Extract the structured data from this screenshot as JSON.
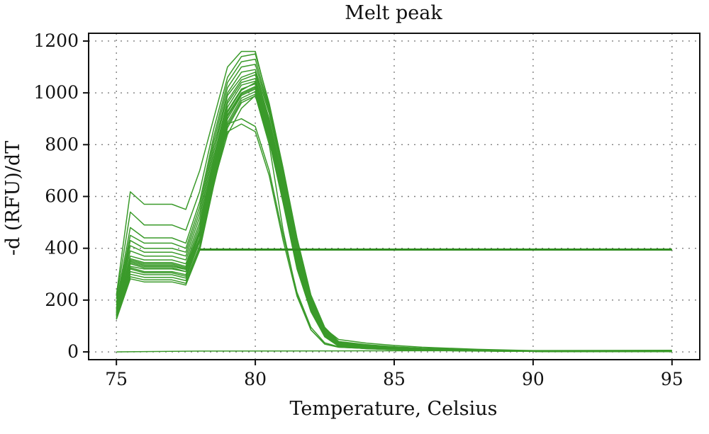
{
  "chart_data": {
    "type": "line",
    "title": "Melt peak",
    "xlabel": "Temperature, Celsius",
    "ylabel": "-d (RFU)/dT",
    "xlim": [
      74,
      96
    ],
    "ylim": [
      -30,
      1230
    ],
    "x_ticks": [
      75,
      80,
      85,
      90,
      95
    ],
    "y_ticks": [
      0,
      200,
      400,
      600,
      800,
      1000,
      1200
    ],
    "grid": true,
    "legend": "none",
    "colors": {
      "curve": "#3a9a2a",
      "threshold": "#2f8c1f",
      "axis": "#111111"
    },
    "threshold": {
      "y": 395,
      "x": [
        78,
        95
      ]
    },
    "baseline": {
      "x": [
        75,
        78,
        83,
        95
      ],
      "y": [
        0,
        3,
        4,
        6
      ]
    },
    "melt_curves": {
      "x": [
        75,
        75.5,
        76,
        77,
        77.5,
        78,
        78.5,
        79,
        79.5,
        80,
        80.5,
        81,
        81.5,
        82,
        82.5,
        83,
        84,
        85,
        86,
        88,
        90,
        95
      ],
      "series": [
        {
          "values": [
            220,
            618,
            570,
            570,
            550,
            700,
            900,
            1100,
            1160,
            1160,
            950,
            690,
            420,
            210,
            90,
            48,
            34,
            25,
            18,
            10,
            5,
            2
          ]
        },
        {
          "values": [
            205,
            540,
            490,
            490,
            470,
            620,
            860,
            1060,
            1140,
            1150,
            960,
            710,
            440,
            220,
            95,
            40,
            28,
            20,
            14,
            8,
            4,
            2
          ]
        },
        {
          "values": [
            190,
            480,
            440,
            440,
            420,
            580,
            830,
            1040,
            1120,
            1130,
            940,
            700,
            430,
            210,
            90,
            38,
            26,
            18,
            12,
            7,
            4,
            2
          ]
        },
        {
          "values": [
            180,
            450,
            420,
            420,
            400,
            560,
            810,
            1020,
            1100,
            1110,
            930,
            690,
            420,
            205,
            85,
            36,
            24,
            17,
            11,
            6,
            3,
            2
          ]
        },
        {
          "values": [
            170,
            430,
            400,
            400,
            385,
            540,
            790,
            1000,
            1080,
            1090,
            920,
            680,
            410,
            200,
            80,
            34,
            22,
            16,
            10,
            6,
            3,
            1
          ]
        },
        {
          "values": [
            165,
            410,
            385,
            385,
            370,
            520,
            770,
            990,
            1060,
            1080,
            900,
            665,
            400,
            195,
            78,
            32,
            20,
            15,
            10,
            6,
            3,
            1
          ]
        },
        {
          "values": [
            160,
            390,
            370,
            370,
            355,
            500,
            750,
            970,
            1050,
            1070,
            890,
            650,
            390,
            190,
            75,
            30,
            18,
            14,
            9,
            5,
            3,
            1
          ]
        },
        {
          "values": [
            155,
            370,
            355,
            355,
            340,
            485,
            735,
            960,
            1040,
            1055,
            880,
            640,
            380,
            185,
            72,
            28,
            17,
            13,
            9,
            5,
            3,
            1
          ]
        },
        {
          "values": [
            150,
            355,
            340,
            340,
            325,
            470,
            720,
            945,
            1030,
            1045,
            870,
            630,
            370,
            180,
            70,
            27,
            16,
            12,
            8,
            5,
            2,
            1
          ]
        },
        {
          "values": [
            145,
            340,
            325,
            325,
            310,
            455,
            705,
            930,
            1015,
            1035,
            860,
            620,
            360,
            175,
            68,
            26,
            15,
            11,
            8,
            5,
            2,
            1
          ]
        },
        {
          "values": [
            140,
            325,
            310,
            310,
            298,
            440,
            690,
            915,
            1000,
            1025,
            850,
            610,
            350,
            170,
            66,
            25,
            14,
            10,
            7,
            4,
            2,
            1
          ]
        },
        {
          "values": [
            135,
            310,
            298,
            298,
            285,
            425,
            675,
            900,
            990,
            1015,
            840,
            600,
            340,
            165,
            64,
            24,
            14,
            10,
            7,
            4,
            2,
            1
          ]
        },
        {
          "values": [
            130,
            300,
            288,
            288,
            275,
            410,
            660,
            885,
            980,
            1005,
            830,
            590,
            330,
            160,
            62,
            23,
            13,
            9,
            6,
            4,
            2,
            1
          ]
        },
        {
          "values": [
            128,
            290,
            278,
            278,
            265,
            400,
            648,
            875,
            970,
            995,
            822,
            582,
            325,
            158,
            60,
            22,
            13,
            9,
            6,
            4,
            2,
            1
          ]
        },
        {
          "values": [
            125,
            282,
            270,
            270,
            258,
            392,
            640,
            865,
            962,
            988,
            815,
            575,
            320,
            155,
            58,
            22,
            12,
            9,
            6,
            3,
            2,
            1
          ]
        },
        {
          "values": [
            150,
            360,
            345,
            345,
            330,
            470,
            700,
            880,
            900,
            870,
            700,
            450,
            230,
            95,
            35,
            20,
            14,
            10,
            7,
            4,
            2,
            1
          ]
        },
        {
          "values": [
            145,
            350,
            335,
            335,
            320,
            460,
            690,
            850,
            880,
            850,
            680,
            430,
            215,
            85,
            30,
            18,
            13,
            9,
            6,
            4,
            2,
            1
          ]
        },
        {
          "values": [
            155,
            330,
            320,
            320,
            310,
            440,
            650,
            840,
            940,
            990,
            800,
            470,
            220,
            85,
            30,
            18,
            13,
            9,
            6,
            4,
            2,
            1
          ]
        },
        {
          "values": [
            140,
            345,
            330,
            330,
            318,
            455,
            705,
            925,
            1010,
            1040,
            870,
            630,
            370,
            180,
            70,
            27,
            16,
            12,
            8,
            5,
            2,
            1
          ]
        },
        {
          "values": [
            135,
            320,
            305,
            305,
            292,
            435,
            685,
            910,
            995,
            1020,
            845,
            605,
            345,
            168,
            65,
            25,
            15,
            11,
            7,
            4,
            2,
            1
          ]
        }
      ]
    }
  }
}
